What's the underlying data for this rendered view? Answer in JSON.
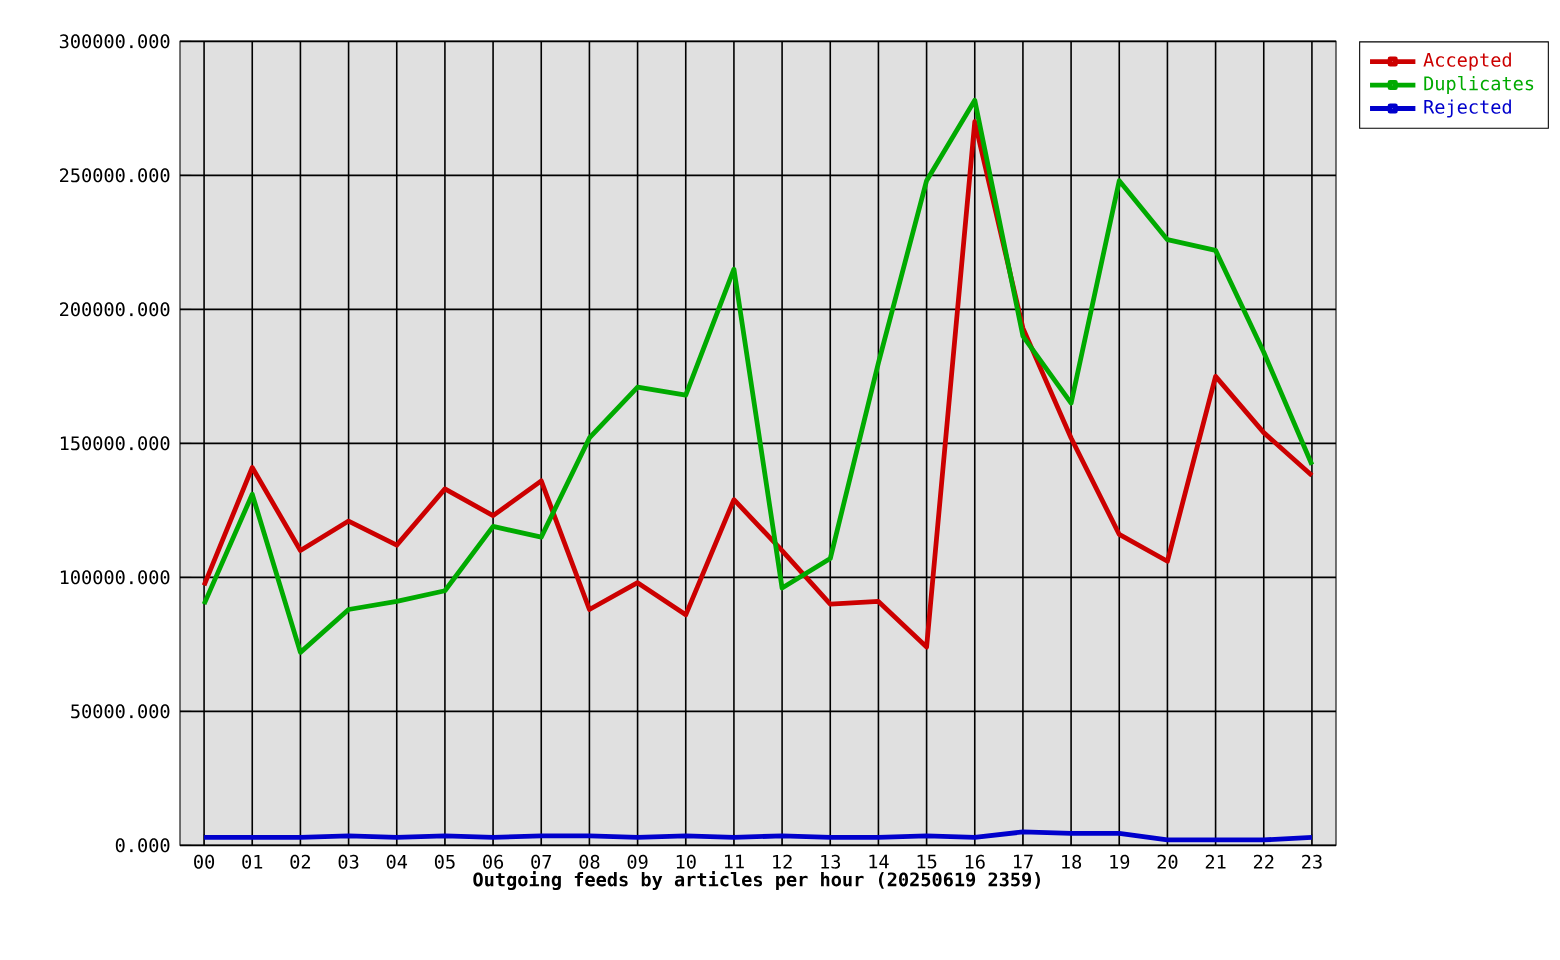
{
  "chart_data": {
    "type": "line",
    "xlabel": "Outgoing feeds by articles per hour (20250619 2359)",
    "categories": [
      "00",
      "01",
      "02",
      "03",
      "04",
      "05",
      "06",
      "07",
      "08",
      "09",
      "10",
      "11",
      "12",
      "13",
      "14",
      "15",
      "16",
      "17",
      "18",
      "19",
      "20",
      "21",
      "22",
      "23"
    ],
    "series": [
      {
        "name": "Accepted",
        "color": "#cc0000",
        "values": [
          97000,
          141000,
          110000,
          121000,
          112000,
          133000,
          123000,
          136000,
          88000,
          98000,
          86000,
          129000,
          110000,
          90000,
          91000,
          74000,
          270000,
          193000,
          152000,
          116000,
          106000,
          175000,
          154000,
          138000
        ]
      },
      {
        "name": "Duplicates",
        "color": "#00aa00",
        "values": [
          90000,
          131000,
          72000,
          88000,
          91000,
          95000,
          119000,
          115000,
          152000,
          171000,
          168000,
          215000,
          96000,
          107000,
          180000,
          248000,
          278000,
          190000,
          165000,
          248000,
          226000,
          222000,
          184000,
          142000
        ]
      },
      {
        "name": "Rejected",
        "color": "#0000cc",
        "values": [
          3000,
          3000,
          3000,
          3500,
          3000,
          3500,
          3000,
          3500,
          3500,
          3000,
          3500,
          3000,
          3500,
          3000,
          3000,
          3500,
          3000,
          5000,
          4500,
          4500,
          2000,
          2000,
          2000,
          3000
        ]
      }
    ],
    "ylim": [
      0,
      300000
    ],
    "yticks": [
      {
        "value": 0,
        "label": "0.000"
      },
      {
        "value": 50000,
        "label": "50000.000"
      },
      {
        "value": 100000,
        "label": "100000.000"
      },
      {
        "value": 150000,
        "label": "150000.000"
      },
      {
        "value": 200000,
        "label": "200000.000"
      },
      {
        "value": 250000,
        "label": "250000.000"
      },
      {
        "value": 300000,
        "label": "300000.000"
      }
    ],
    "grid": true,
    "legend": "top right",
    "marker": "none",
    "line_style": "solid"
  }
}
